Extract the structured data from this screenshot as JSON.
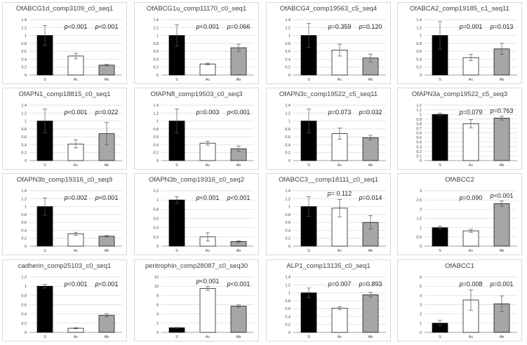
{
  "chart_data": [
    {
      "type": "bar",
      "title": "OfABCG1d_comp3109_c0_seq1",
      "categories": [
        "S",
        "Ac",
        "Ab"
      ],
      "values": [
        1.0,
        0.48,
        0.25
      ],
      "errors": [
        0.25,
        0.07,
        0.02
      ],
      "ylim": [
        0,
        1.4
      ],
      "yticks": [
        "0",
        "0.2",
        "0.4",
        "0.6",
        "0.8",
        "1",
        "1.2",
        "1.4"
      ],
      "p_labels": [
        {
          "prefix": "p",
          "text": "<0.001"
        },
        {
          "prefix": "p",
          "text": "<0.001"
        }
      ]
    },
    {
      "type": "bar",
      "title": "OfABCG1u_comp11170_c0_seq1",
      "categories": [
        "S",
        "Ac",
        "Ab"
      ],
      "values": [
        1.0,
        0.28,
        0.69
      ],
      "errors": [
        0.27,
        0.02,
        0.09
      ],
      "ylim": [
        0,
        1.4
      ],
      "yticks": [
        "0",
        "0.2",
        "0.4",
        "0.6",
        "0.8",
        "1",
        "1.2",
        "1.4"
      ],
      "p_labels": [
        {
          "prefix": "p",
          "text": "<0.001"
        },
        {
          "prefix": "p",
          "text": "=0.066"
        }
      ]
    },
    {
      "type": "bar",
      "title": "OfABCG4_comp19563_c5_seq4",
      "categories": [
        "S",
        "Ac",
        "Ab"
      ],
      "values": [
        1.0,
        0.63,
        0.43
      ],
      "errors": [
        0.3,
        0.15,
        0.1
      ],
      "ylim": [
        0,
        1.4
      ],
      "yticks": [
        "0",
        "0.2",
        "0.4",
        "0.6",
        "0.8",
        "1",
        "1.2",
        "1.4"
      ],
      "p_labels": [
        {
          "prefix": "p",
          "text": "=0.359"
        },
        {
          "prefix": "p",
          "text": "=0.120"
        }
      ]
    },
    {
      "type": "bar",
      "title": "OfABCA2_comp19185_c1_seq11",
      "categories": [
        "S",
        "Ac",
        "Ab"
      ],
      "values": [
        1.0,
        0.44,
        0.66
      ],
      "errors": [
        0.35,
        0.08,
        0.14
      ],
      "ylim": [
        0,
        1.4
      ],
      "yticks": [
        "0",
        "0.2",
        "0.4",
        "0.6",
        "0.8",
        "1",
        "1.2",
        "1.4"
      ],
      "p_labels": [
        {
          "prefix": "p",
          "text": "=0.001"
        },
        {
          "prefix": "p",
          "text": "=0.013"
        }
      ]
    },
    {
      "type": "bar",
      "title": "OfAPN1_comp18815_c0_seq1",
      "categories": [
        "S",
        "Ac",
        "Ab"
      ],
      "values": [
        1.0,
        0.42,
        0.68
      ],
      "errors": [
        0.3,
        0.1,
        0.28
      ],
      "ylim": [
        0,
        1.4
      ],
      "yticks": [
        "0",
        "0.2",
        "0.4",
        "0.6",
        "0.8",
        "1",
        "1.2",
        "1.4"
      ],
      "p_labels": [
        {
          "prefix": "p",
          "text": "<0.001"
        },
        {
          "prefix": "p",
          "text": "=0.022"
        }
      ]
    },
    {
      "type": "bar",
      "title": "OfAPN8_comp19503_c0_seq3",
      "categories": [
        "S",
        "Ac",
        "Ab"
      ],
      "values": [
        1.0,
        0.44,
        0.3
      ],
      "errors": [
        0.3,
        0.05,
        0.07
      ],
      "ylim": [
        0,
        1.4
      ],
      "yticks": [
        "0",
        "0.2",
        "0.4",
        "0.6",
        "0.8",
        "1",
        "1.2",
        "1.4"
      ],
      "p_labels": [
        {
          "prefix": "p",
          "text": "=0.003"
        },
        {
          "prefix": "p",
          "text": "<0.001"
        }
      ]
    },
    {
      "type": "bar",
      "title": "OfAPN3c_comp19522_c5_seq11",
      "categories": [
        "S",
        "Ac",
        "Ab"
      ],
      "values": [
        1.0,
        0.68,
        0.58
      ],
      "errors": [
        0.3,
        0.14,
        0.06
      ],
      "ylim": [
        0,
        1.4
      ],
      "yticks": [
        "0",
        "0.2",
        "0.4",
        "0.6",
        "0.8",
        "1",
        "1.2",
        "1.4"
      ],
      "p_labels": [
        {
          "prefix": "p",
          "text": "=0.073"
        },
        {
          "prefix": "p",
          "text": "=0.032"
        }
      ]
    },
    {
      "type": "bar",
      "title": "OfAPN3a_comp19522_c5_seq3",
      "categories": [
        "S",
        "Ac",
        "Ab"
      ],
      "values": [
        1.0,
        0.8,
        0.92
      ],
      "errors": [
        0.03,
        0.09,
        0.04
      ],
      "ylim": [
        0,
        1.2
      ],
      "yticks": [
        "0",
        "0.1",
        "0.2",
        "0.3",
        "0.4",
        "0.5",
        "0.6",
        "0.7",
        "0.8",
        "0.9",
        "1",
        "1.1",
        "1.2"
      ],
      "p_labels": [
        {
          "prefix": "p",
          "text": "=0.079"
        },
        {
          "prefix": "p",
          "text": "=0.763"
        }
      ]
    },
    {
      "type": "bar",
      "title": "OfAPN3b_comp19316_c0_seq9",
      "categories": [
        "S",
        "Ac",
        "Ab"
      ],
      "values": [
        1.0,
        0.31,
        0.25
      ],
      "errors": [
        0.22,
        0.04,
        0.02
      ],
      "ylim": [
        0,
        1.4
      ],
      "yticks": [
        "0",
        "0.2",
        "0.4",
        "0.6",
        "0.8",
        "1",
        "1.2",
        "1.4"
      ],
      "p_labels": [
        {
          "prefix": "p",
          "text": "=0.002"
        },
        {
          "prefix": "p",
          "text": "<0.001"
        }
      ]
    },
    {
      "type": "bar",
      "title": "OfAPN3b_comp19316_c0_seq2",
      "categories": [
        "S",
        "Ac",
        "Ab"
      ],
      "values": [
        1.0,
        0.2,
        0.1
      ],
      "errors": [
        0.07,
        0.09,
        0.02
      ],
      "ylim": [
        0,
        1.2
      ],
      "yticks": [
        "0",
        "0.2",
        "0.4",
        "0.6",
        "0.8",
        "1",
        "1.2"
      ],
      "p_labels": [
        {
          "prefix": "p",
          "text": "<0.001"
        },
        {
          "prefix": "p",
          "text": "<0.001"
        }
      ]
    },
    {
      "type": "bar",
      "title": "OfABCC3__comp18111_c0_seq1",
      "categories": [
        "S",
        "Ac",
        "Ab"
      ],
      "values": [
        1.0,
        0.96,
        0.6
      ],
      "errors": [
        0.25,
        0.22,
        0.17
      ],
      "ylim": [
        0,
        1.4
      ],
      "yticks": [
        "0",
        "0.2",
        "0.4",
        "0.6",
        "0.8",
        "1",
        "1.2",
        "1.4"
      ],
      "p_labels": [
        {
          "prefix": "p",
          "text": "= 0.112"
        },
        {
          "prefix": "p",
          "text": "=0.014"
        }
      ]
    },
    {
      "type": "bar",
      "title": "OfABCC2",
      "categories": [
        "S",
        "Ac",
        "Ab"
      ],
      "values": [
        1.0,
        0.83,
        2.3
      ],
      "errors": [
        0.08,
        0.08,
        0.14
      ],
      "ylim": [
        0,
        3
      ],
      "yticks": [
        "0",
        "0.5",
        "1",
        "1.5",
        "2",
        "2.5",
        "3"
      ],
      "p_labels": [
        {
          "prefix": "p",
          "text": "=0.090"
        },
        {
          "prefix": "p",
          "text": "<0.001"
        }
      ]
    },
    {
      "type": "bar",
      "title": "cadherin_comp25103_c0_seq1",
      "categories": [
        "S",
        "Ac",
        "Ab"
      ],
      "values": [
        1.0,
        0.09,
        0.37
      ],
      "errors": [
        0.04,
        0.01,
        0.03
      ],
      "ylim": [
        0,
        1.2
      ],
      "yticks": [
        "0",
        "0.2",
        "0.4",
        "0.6",
        "0.8",
        "1",
        "1.2"
      ],
      "p_labels": [
        {
          "prefix": "p",
          "text": "<0.001"
        },
        {
          "prefix": "p",
          "text": "<0.001"
        }
      ]
    },
    {
      "type": "bar",
      "title": "peritrophin_comp28087_c0_seq30",
      "categories": [
        "S",
        "Ac",
        "Ab"
      ],
      "values": [
        1.0,
        9.5,
        5.7
      ],
      "errors": [
        0.08,
        0.4,
        0.25
      ],
      "ylim": [
        0,
        12
      ],
      "yticks": [
        "0",
        "2",
        "4",
        "6",
        "8",
        "10",
        "12"
      ],
      "p_labels": [
        {
          "prefix": "p",
          "text": "<0.001"
        },
        {
          "prefix": "p",
          "text": "<0.001"
        }
      ]
    },
    {
      "type": "bar",
      "title": "ALP1_comp13135_c0_seq1",
      "categories": [
        "S",
        "Ac",
        "Ab"
      ],
      "values": [
        1.0,
        0.61,
        0.95
      ],
      "errors": [
        0.12,
        0.04,
        0.06
      ],
      "ylim": [
        0,
        1.4
      ],
      "yticks": [
        "0",
        "0.2",
        "0.4",
        "0.6",
        "0.8",
        "1",
        "1.2",
        "1.4"
      ],
      "p_labels": [
        {
          "prefix": "p",
          "text": "=0.007"
        },
        {
          "prefix": "p",
          "text": "=0.893"
        }
      ]
    },
    {
      "type": "bar",
      "title": "OfABCC1",
      "categories": [
        "S",
        "Ac",
        "Ab"
      ],
      "values": [
        1.0,
        3.5,
        3.1
      ],
      "errors": [
        0.3,
        1.1,
        0.85
      ],
      "ylim": [
        0,
        6
      ],
      "yticks": [
        "0",
        "1",
        "2",
        "3",
        "4",
        "5",
        "6"
      ],
      "p_labels": [
        {
          "prefix": "p",
          "text": "=0.008"
        },
        {
          "prefix": "p",
          "text": "=0.001"
        }
      ]
    }
  ],
  "colors": {
    "S": "#000000",
    "Ac": "#ffffff",
    "Ab": "#a6a6a6",
    "grid": "#d9d9d9",
    "axis": "#808080",
    "border": "#d9d9d9"
  }
}
